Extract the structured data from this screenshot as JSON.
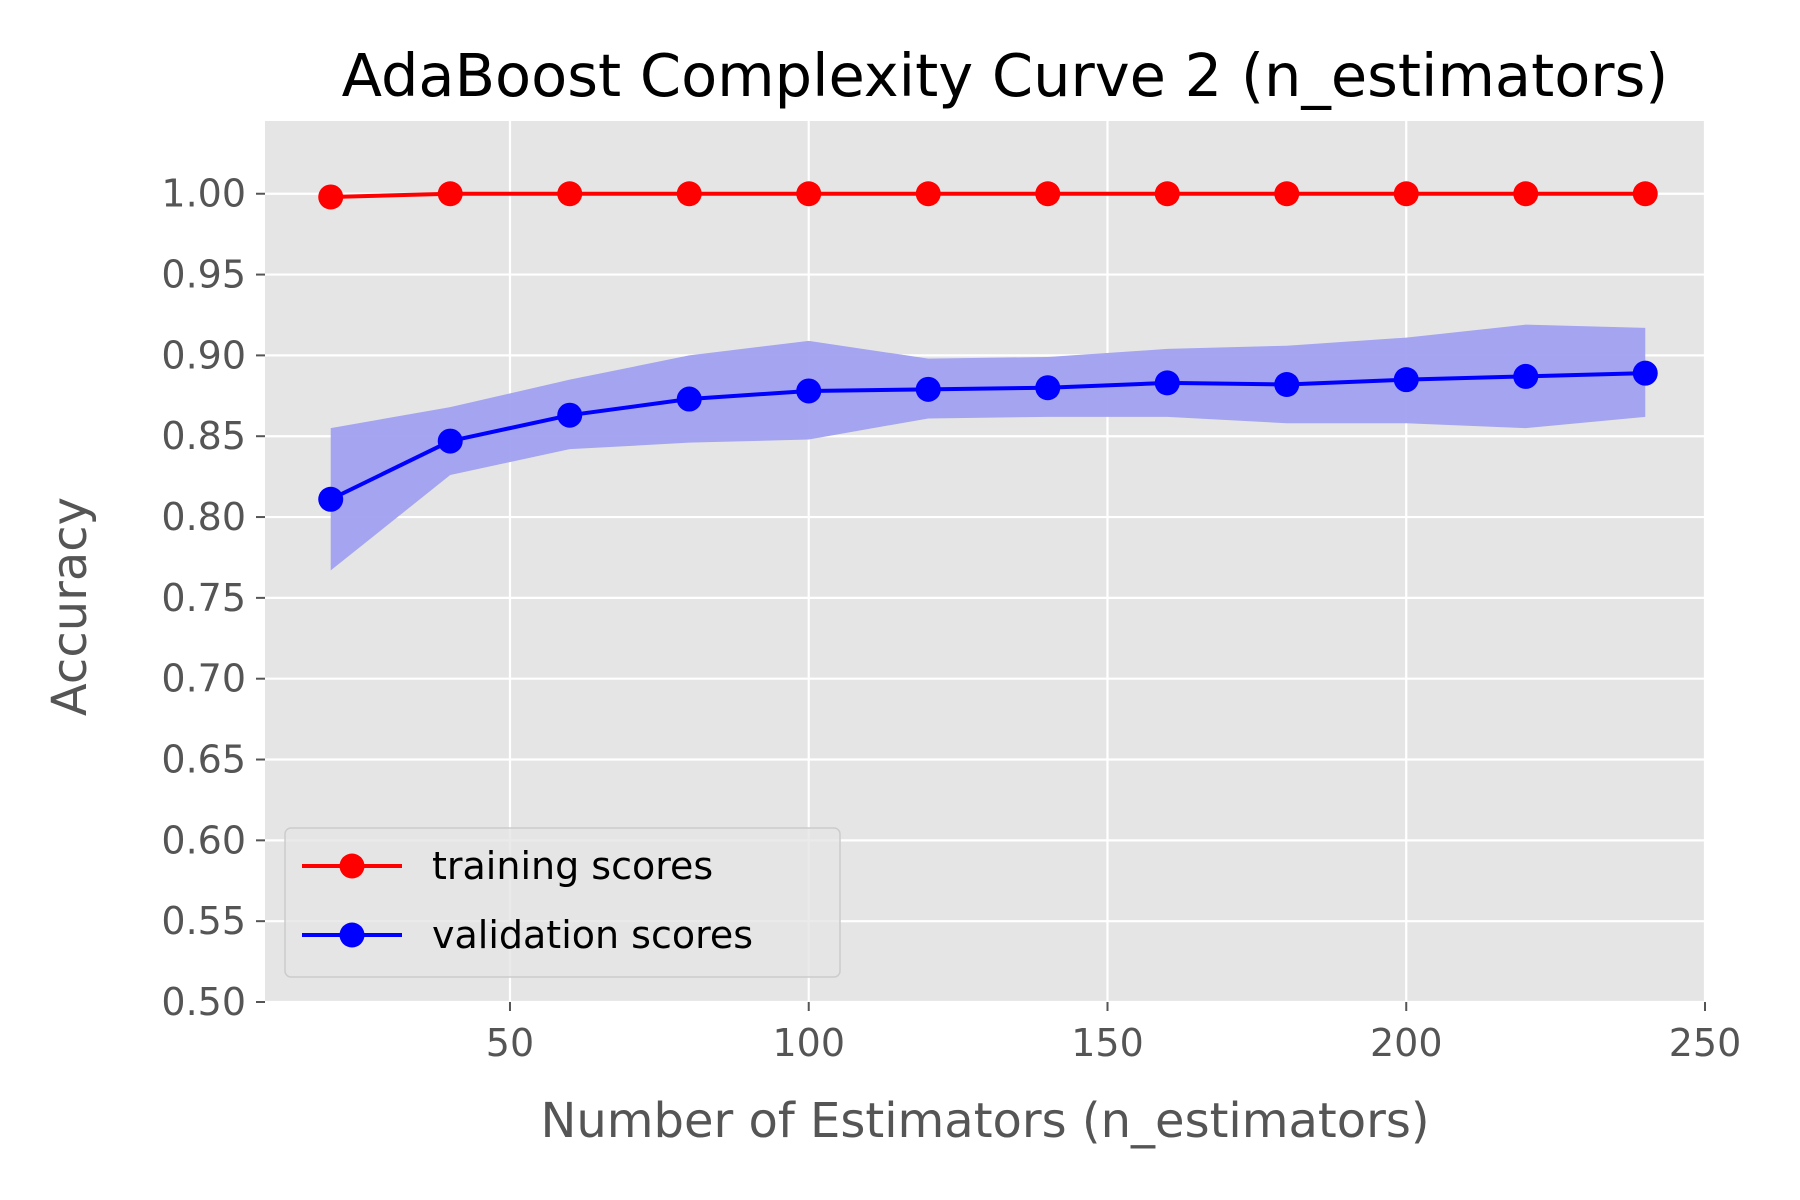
{
  "chart_data": {
    "type": "line",
    "title": "AdaBoost Complexity Curve 2 (n_estimators)",
    "xlabel": "Number of Estimators (n_estimators)",
    "ylabel": "Accuracy",
    "xlim": [
      9,
      250
    ],
    "ylim": [
      0.5,
      1.045
    ],
    "xticks": [
      50,
      100,
      150,
      200,
      250
    ],
    "xtick_labels": [
      "50",
      "100",
      "150",
      "200",
      "250"
    ],
    "yticks": [
      0.5,
      0.55,
      0.6,
      0.65,
      0.7,
      0.75,
      0.8,
      0.85,
      0.9,
      0.95,
      1.0
    ],
    "ytick_labels": [
      "0.50",
      "0.55",
      "0.60",
      "0.65",
      "0.70",
      "0.75",
      "0.80",
      "0.85",
      "0.90",
      "0.95",
      "1.00"
    ],
    "grid": true,
    "legend_position": "lower-left",
    "x": [
      20,
      40,
      60,
      80,
      100,
      120,
      140,
      160,
      180,
      200,
      220,
      240
    ],
    "series": [
      {
        "name": "training scores",
        "color": "#ff0000",
        "values": [
          0.998,
          1.0,
          1.0,
          1.0,
          1.0,
          1.0,
          1.0,
          1.0,
          1.0,
          1.0,
          1.0,
          1.0
        ]
      },
      {
        "name": "validation scores",
        "color": "#0000ff",
        "band_color": "#a0a0f0",
        "values": [
          0.811,
          0.847,
          0.863,
          0.873,
          0.878,
          0.879,
          0.88,
          0.883,
          0.882,
          0.885,
          0.887,
          0.889
        ],
        "band_upper": [
          0.855,
          0.868,
          0.885,
          0.9,
          0.909,
          0.898,
          0.899,
          0.904,
          0.906,
          0.911,
          0.919,
          0.917
        ],
        "band_lower": [
          0.767,
          0.826,
          0.842,
          0.846,
          0.848,
          0.861,
          0.862,
          0.862,
          0.858,
          0.858,
          0.855,
          0.862
        ]
      }
    ]
  }
}
